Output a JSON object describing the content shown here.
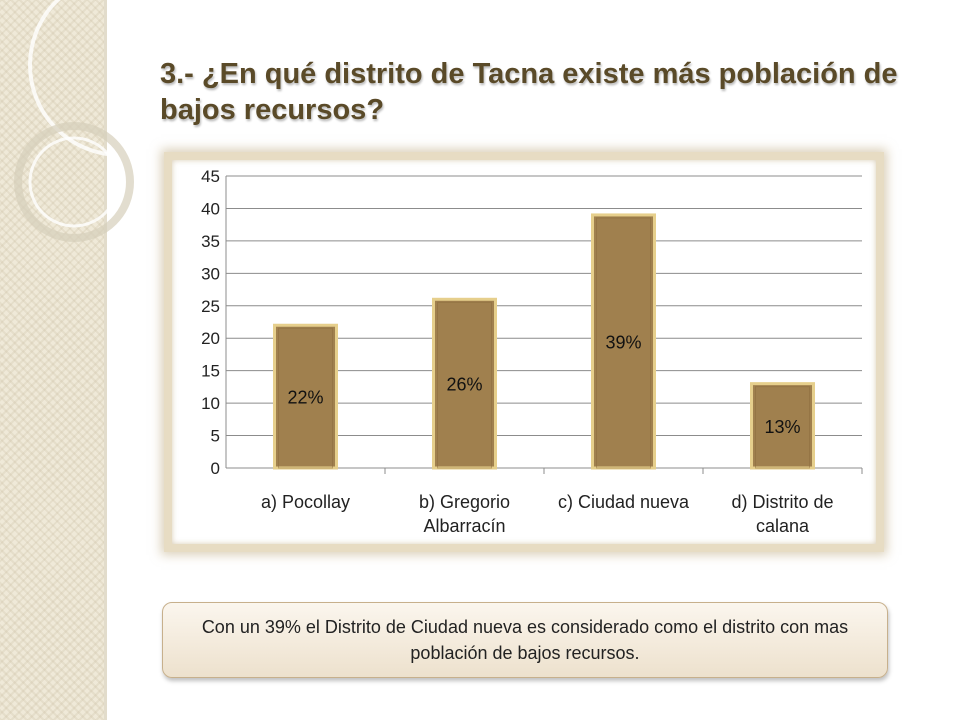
{
  "slide": {
    "title": "3.- ¿En qué distrito de Tacna existe más  población de bajos recursos?",
    "caption": "Con un 39% el Distrito de Ciudad nueva es considerado como el distrito con mas población de bajos recursos."
  },
  "colors": {
    "title": "#5a4a28",
    "bar_fill": "#a0804e",
    "bar_edge": "#e6cf8c",
    "frame": "#e7dcc3"
  },
  "chart_data": {
    "type": "bar",
    "categories": [
      [
        "a) Pocollay"
      ],
      [
        "b) Gregorio",
        "Albarracín"
      ],
      [
        "c) Ciudad nueva"
      ],
      [
        "d) Distrito de",
        "calana"
      ]
    ],
    "values": [
      22,
      26,
      39,
      13
    ],
    "data_labels": [
      "22%",
      "26%",
      "39%",
      "13%"
    ],
    "yticks": [
      "0",
      "5",
      "10",
      "15",
      "20",
      "25",
      "30",
      "35",
      "40",
      "45"
    ],
    "ylim": [
      0,
      45
    ],
    "grid": true,
    "legend": "none"
  }
}
